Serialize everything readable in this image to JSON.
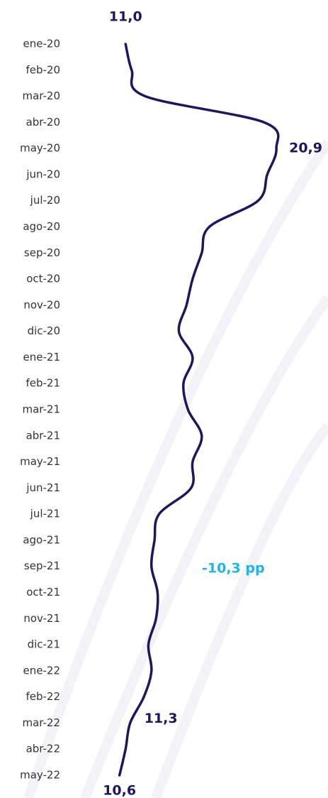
{
  "chart_data": {
    "type": "line",
    "orientation": "horizontal",
    "categories": [
      "ene-20",
      "feb-20",
      "mar-20",
      "abr-20",
      "may-20",
      "jun-20",
      "jul-20",
      "ago-20",
      "sep-20",
      "oct-20",
      "nov-20",
      "dic-20",
      "ene-21",
      "feb-21",
      "mar-21",
      "abr-21",
      "may-21",
      "jun-21",
      "jul-21",
      "ago-21",
      "sep-21",
      "oct-21",
      "nov-21",
      "dic-21",
      "ene-22",
      "feb-22",
      "mar-22",
      "abr-22",
      "may-22"
    ],
    "values": [
      11.0,
      11.4,
      12.3,
      20.1,
      20.9,
      20.3,
      19.7,
      16.5,
      16.0,
      15.4,
      15.0,
      14.5,
      15.4,
      14.8,
      15.1,
      16.0,
      15.4,
      15.3,
      13.2,
      12.9,
      12.7,
      13.1,
      13.0,
      12.5,
      12.7,
      12.2,
      11.3,
      11.0,
      10.6
    ],
    "value_labels": [
      "11,0",
      null,
      null,
      null,
      "20,9",
      null,
      null,
      null,
      null,
      null,
      null,
      null,
      null,
      null,
      null,
      null,
      null,
      null,
      null,
      null,
      null,
      null,
      null,
      null,
      null,
      null,
      "11,3",
      null,
      "10,6"
    ],
    "color": "#22145f",
    "xlim": [
      7.5,
      23.5
    ],
    "annotations": [
      "-10,3 pp"
    ]
  }
}
